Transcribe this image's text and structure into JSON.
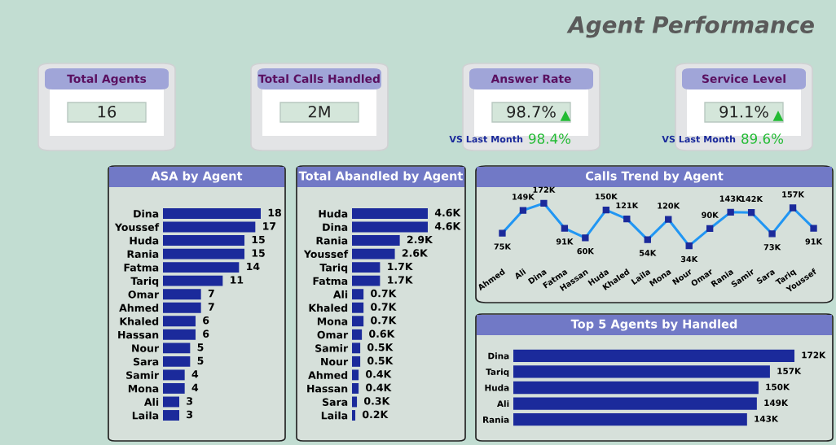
{
  "chart_data": [
    {
      "type": "other",
      "title": "Agent Performance"
    },
    {
      "type": "other",
      "title": "Total Agents",
      "annotations": [
        "16"
      ]
    },
    {
      "type": "other",
      "title": "Total Calls Handled",
      "annotations": [
        "2M"
      ]
    },
    {
      "type": "other",
      "title": "Answer Rate",
      "annotations": [
        "98.7%",
        "▲",
        "VS Last Month",
        "98.4%"
      ]
    },
    {
      "type": "other",
      "title": "Service Level",
      "annotations": [
        "91.1%",
        "▲",
        "VS Last Month",
        "89.6%"
      ]
    },
    {
      "type": "bar",
      "orientation": "horizontal",
      "title": "ASA by Agent",
      "color": "#1b2a9b",
      "data_labels": true,
      "categories": [
        "Dina",
        "Youssef",
        "Huda",
        "Rania",
        "Fatma",
        "Tariq",
        "Omar",
        "Ahmed",
        "Khaled",
        "Hassan",
        "Nour",
        "Sara",
        "Samir",
        "Mona",
        "Ali",
        "Laila"
      ],
      "values": [
        18,
        17,
        15,
        15,
        14,
        11,
        7,
        7,
        6,
        6,
        5,
        5,
        4,
        4,
        3,
        3
      ]
    },
    {
      "type": "bar",
      "orientation": "horizontal",
      "title": "Total Abandled by Agent",
      "color": "#1b2a9b",
      "categories": [
        "Huda",
        "Dina",
        "Rania",
        "Youssef",
        "Tariq",
        "Fatma",
        "Ali",
        "Khaled",
        "Mona",
        "Omar",
        "Samir",
        "Nour",
        "Ahmed",
        "Hassan",
        "Sara",
        "Laila"
      ],
      "values": [
        4.6,
        4.6,
        2.9,
        2.6,
        1.7,
        1.7,
        0.7,
        0.7,
        0.7,
        0.6,
        0.5,
        0.5,
        0.4,
        0.4,
        0.3,
        0.2
      ],
      "value_labels": [
        "4.6K",
        "4.6K",
        "2.9K",
        "2.6K",
        "1.7K",
        "1.7K",
        "0.7K",
        "0.7K",
        "0.7K",
        "0.6K",
        "0.5K",
        "0.5K",
        "0.4K",
        "0.4K",
        "0.3K",
        "0.2K"
      ]
    },
    {
      "type": "line",
      "title": "Calls Trend by Agent",
      "color": "#2196f3",
      "marker": "square",
      "line_style": "solid",
      "categories": [
        "Ahmed",
        "Ali",
        "Dina",
        "Fatma",
        "Hassan",
        "Huda",
        "Khaled",
        "Laila",
        "Mona",
        "Nour",
        "Omar",
        "Rania",
        "Samir",
        "Sara",
        "Tariq",
        "Youssef"
      ],
      "values": [
        75,
        149,
        172,
        91,
        60,
        150,
        121,
        54,
        120,
        34,
        90,
        143,
        142,
        73,
        157,
        91
      ],
      "value_labels": [
        "75K",
        "149K",
        "172K",
        "91K",
        "60K",
        "150K",
        "121K",
        "54K",
        "120K",
        "34K",
        "90K",
        "143K",
        "142K",
        "73K",
        "157K",
        "91K"
      ]
    },
    {
      "type": "bar",
      "orientation": "horizontal",
      "title": "Top 5 Agents by Handled",
      "color": "#1b2a9b",
      "categories": [
        "Dina",
        "Tariq",
        "Huda",
        "Ali",
        "Rania"
      ],
      "values": [
        172,
        157,
        150,
        149,
        143
      ],
      "value_labels": [
        "172K",
        "157K",
        "150K",
        "149K",
        "143K"
      ]
    }
  ]
}
